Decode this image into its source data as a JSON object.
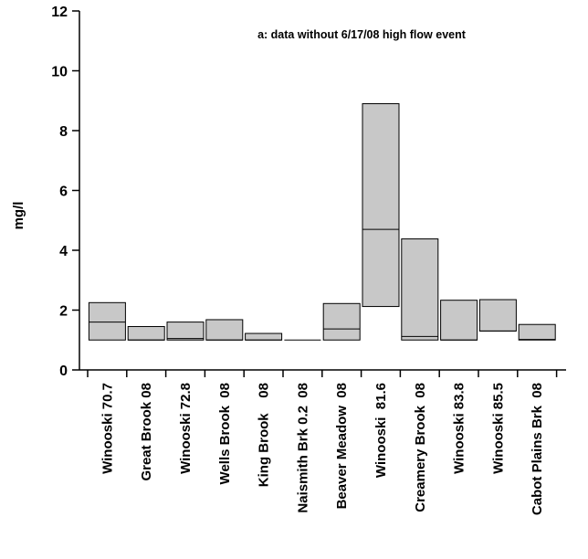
{
  "chart_data": {
    "type": "box",
    "title": "",
    "annotation": "a: data without 6/17/08 high flow event",
    "xlabel": "",
    "ylabel": "mg/l",
    "ylim": [
      0,
      12
    ],
    "yticks": [
      0,
      2,
      4,
      6,
      8,
      10,
      12
    ],
    "grid": false,
    "box_color": "#c8c8c8",
    "categories": [
      "Winooski 70.7",
      "Great Brook 08",
      "Winooski 72.8",
      "Wells Brook  08",
      "King Brook    08",
      "Naismith Brk 0.2  08",
      "Beaver Meadow  08",
      "Winooski  81.6",
      "Creamery Brook  08",
      "Winooski 83.8",
      "Winooski 85.5",
      "Cabot Plains Brk  08"
    ],
    "boxes": [
      {
        "low": 1.0,
        "median": 1.6,
        "high": 2.25
      },
      {
        "low": 1.0,
        "median": 1.0,
        "high": 1.45
      },
      {
        "low": 1.0,
        "median": 1.05,
        "high": 1.6
      },
      {
        "low": 1.0,
        "median": 1.0,
        "high": 1.68
      },
      {
        "low": 1.0,
        "median": 1.0,
        "high": 1.22
      },
      {
        "low": 1.0,
        "median": 1.0,
        "high": 1.0
      },
      {
        "low": 1.0,
        "median": 1.37,
        "high": 2.22
      },
      {
        "low": 2.12,
        "median": 4.7,
        "high": 8.9
      },
      {
        "low": 1.0,
        "median": 1.12,
        "high": 4.38
      },
      {
        "low": 1.0,
        "median": 1.0,
        "high": 2.33
      },
      {
        "low": 1.3,
        "median": 1.3,
        "high": 2.35
      },
      {
        "low": 1.0,
        "median": 1.02,
        "high": 1.52
      }
    ]
  }
}
